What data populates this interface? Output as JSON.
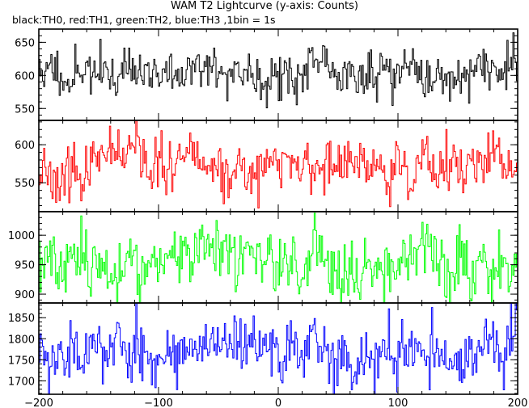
{
  "chart_data": {
    "type": "line",
    "title": "WAM T2 Lightcurve (y-axis: Counts)",
    "subtitle": "black:TH0, red:TH1, green:TH2, blue:TH3 ,1bin = 1s",
    "xlim": [
      -200,
      200
    ],
    "xticks": [
      -200,
      -100,
      0,
      100,
      200
    ],
    "x_step": 1,
    "grid": false,
    "panels": [
      {
        "name": "TH0",
        "color": "#000000",
        "ylim": [
          532,
          670
        ],
        "yticks": [
          550,
          600,
          650
        ],
        "mean": 605,
        "spread": 18,
        "seed": 11
      },
      {
        "name": "TH1",
        "color": "#ff0000",
        "ylim": [
          512,
          632
        ],
        "yticks": [
          550,
          600
        ],
        "mean": 570,
        "spread": 17,
        "seed": 23
      },
      {
        "name": "TH2",
        "color": "#00ff00",
        "ylim": [
          885,
          1040
        ],
        "yticks": [
          900,
          950,
          1000
        ],
        "mean": 955,
        "spread": 27,
        "seed": 37
      },
      {
        "name": "TH3",
        "color": "#0000ff",
        "ylim": [
          1668,
          1885
        ],
        "yticks": [
          1700,
          1750,
          1800,
          1850
        ],
        "mean": 1775,
        "spread": 38,
        "seed": 53
      }
    ]
  }
}
